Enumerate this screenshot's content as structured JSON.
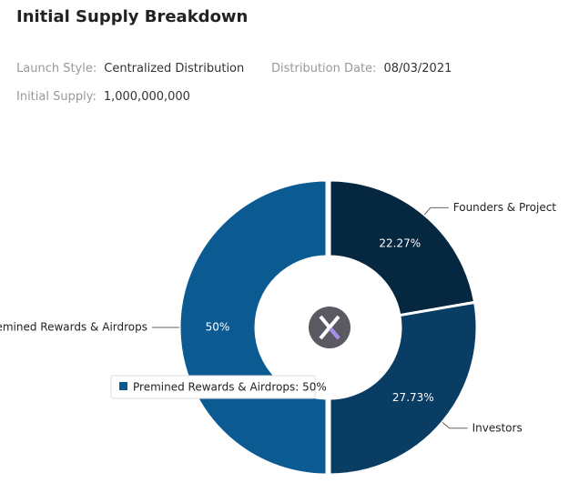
{
  "header": {
    "title": "Initial Supply Breakdown"
  },
  "details": [
    {
      "label": "Launch Style:",
      "value": "Centralized Distribution"
    },
    {
      "label": "Distribution Date:",
      "value": "08/03/2021"
    },
    {
      "label": "Initial Supply:",
      "value": "1,000,000,000"
    }
  ],
  "chart_data": {
    "type": "donut",
    "categories": [
      "Founders & Project",
      "Investors",
      "Premined Rewards & Airdrops"
    ],
    "values": [
      22.27,
      27.73,
      50
    ],
    "value_labels": [
      "22.27%",
      "27.73%",
      "50%"
    ],
    "colors": [
      "#05273f",
      "#093d63",
      "#0b5a91"
    ],
    "tooltip": "Premined Rewards & Airdrops: 50%"
  }
}
